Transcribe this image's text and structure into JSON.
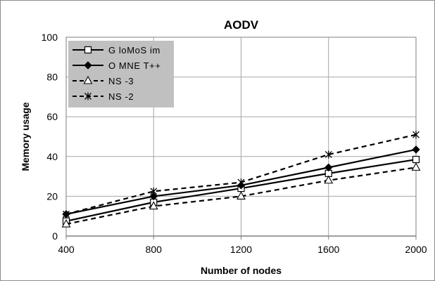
{
  "chart_data": {
    "type": "line",
    "title": "AODV",
    "xlabel": "Number of nodes",
    "ylabel": "Memory usage",
    "x": [
      400,
      800,
      1200,
      1600,
      2000
    ],
    "xlim": [
      400,
      2000
    ],
    "ylim": [
      0,
      100
    ],
    "y_ticks": [
      0,
      20,
      40,
      60,
      80,
      100
    ],
    "grid": true,
    "legend_position": "top-left",
    "series": [
      {
        "name": "GloMoSim",
        "display": "G loMoS im",
        "values": [
          7.5,
          17,
          24,
          31.5,
          38.5
        ],
        "marker": "square",
        "dash": "solid"
      },
      {
        "name": "OMNET++",
        "display": "O MNE T++",
        "values": [
          11,
          20,
          25.5,
          34.5,
          43.5
        ],
        "marker": "diamond",
        "dash": "solid"
      },
      {
        "name": "NS-3",
        "display": "NS -3",
        "values": [
          6,
          15,
          20,
          28,
          34.5
        ],
        "marker": "triangle",
        "dash": "dashed"
      },
      {
        "name": "NS-2",
        "display": "NS -2",
        "values": [
          11,
          22.5,
          27,
          41,
          51
        ],
        "marker": "asterisk",
        "dash": "dashed"
      }
    ],
    "colors": {
      "lines": "#000000",
      "grid": "#a6a6a6",
      "legend_bg": "#c0c0c0",
      "plot_border": "#7f7f7f"
    }
  }
}
